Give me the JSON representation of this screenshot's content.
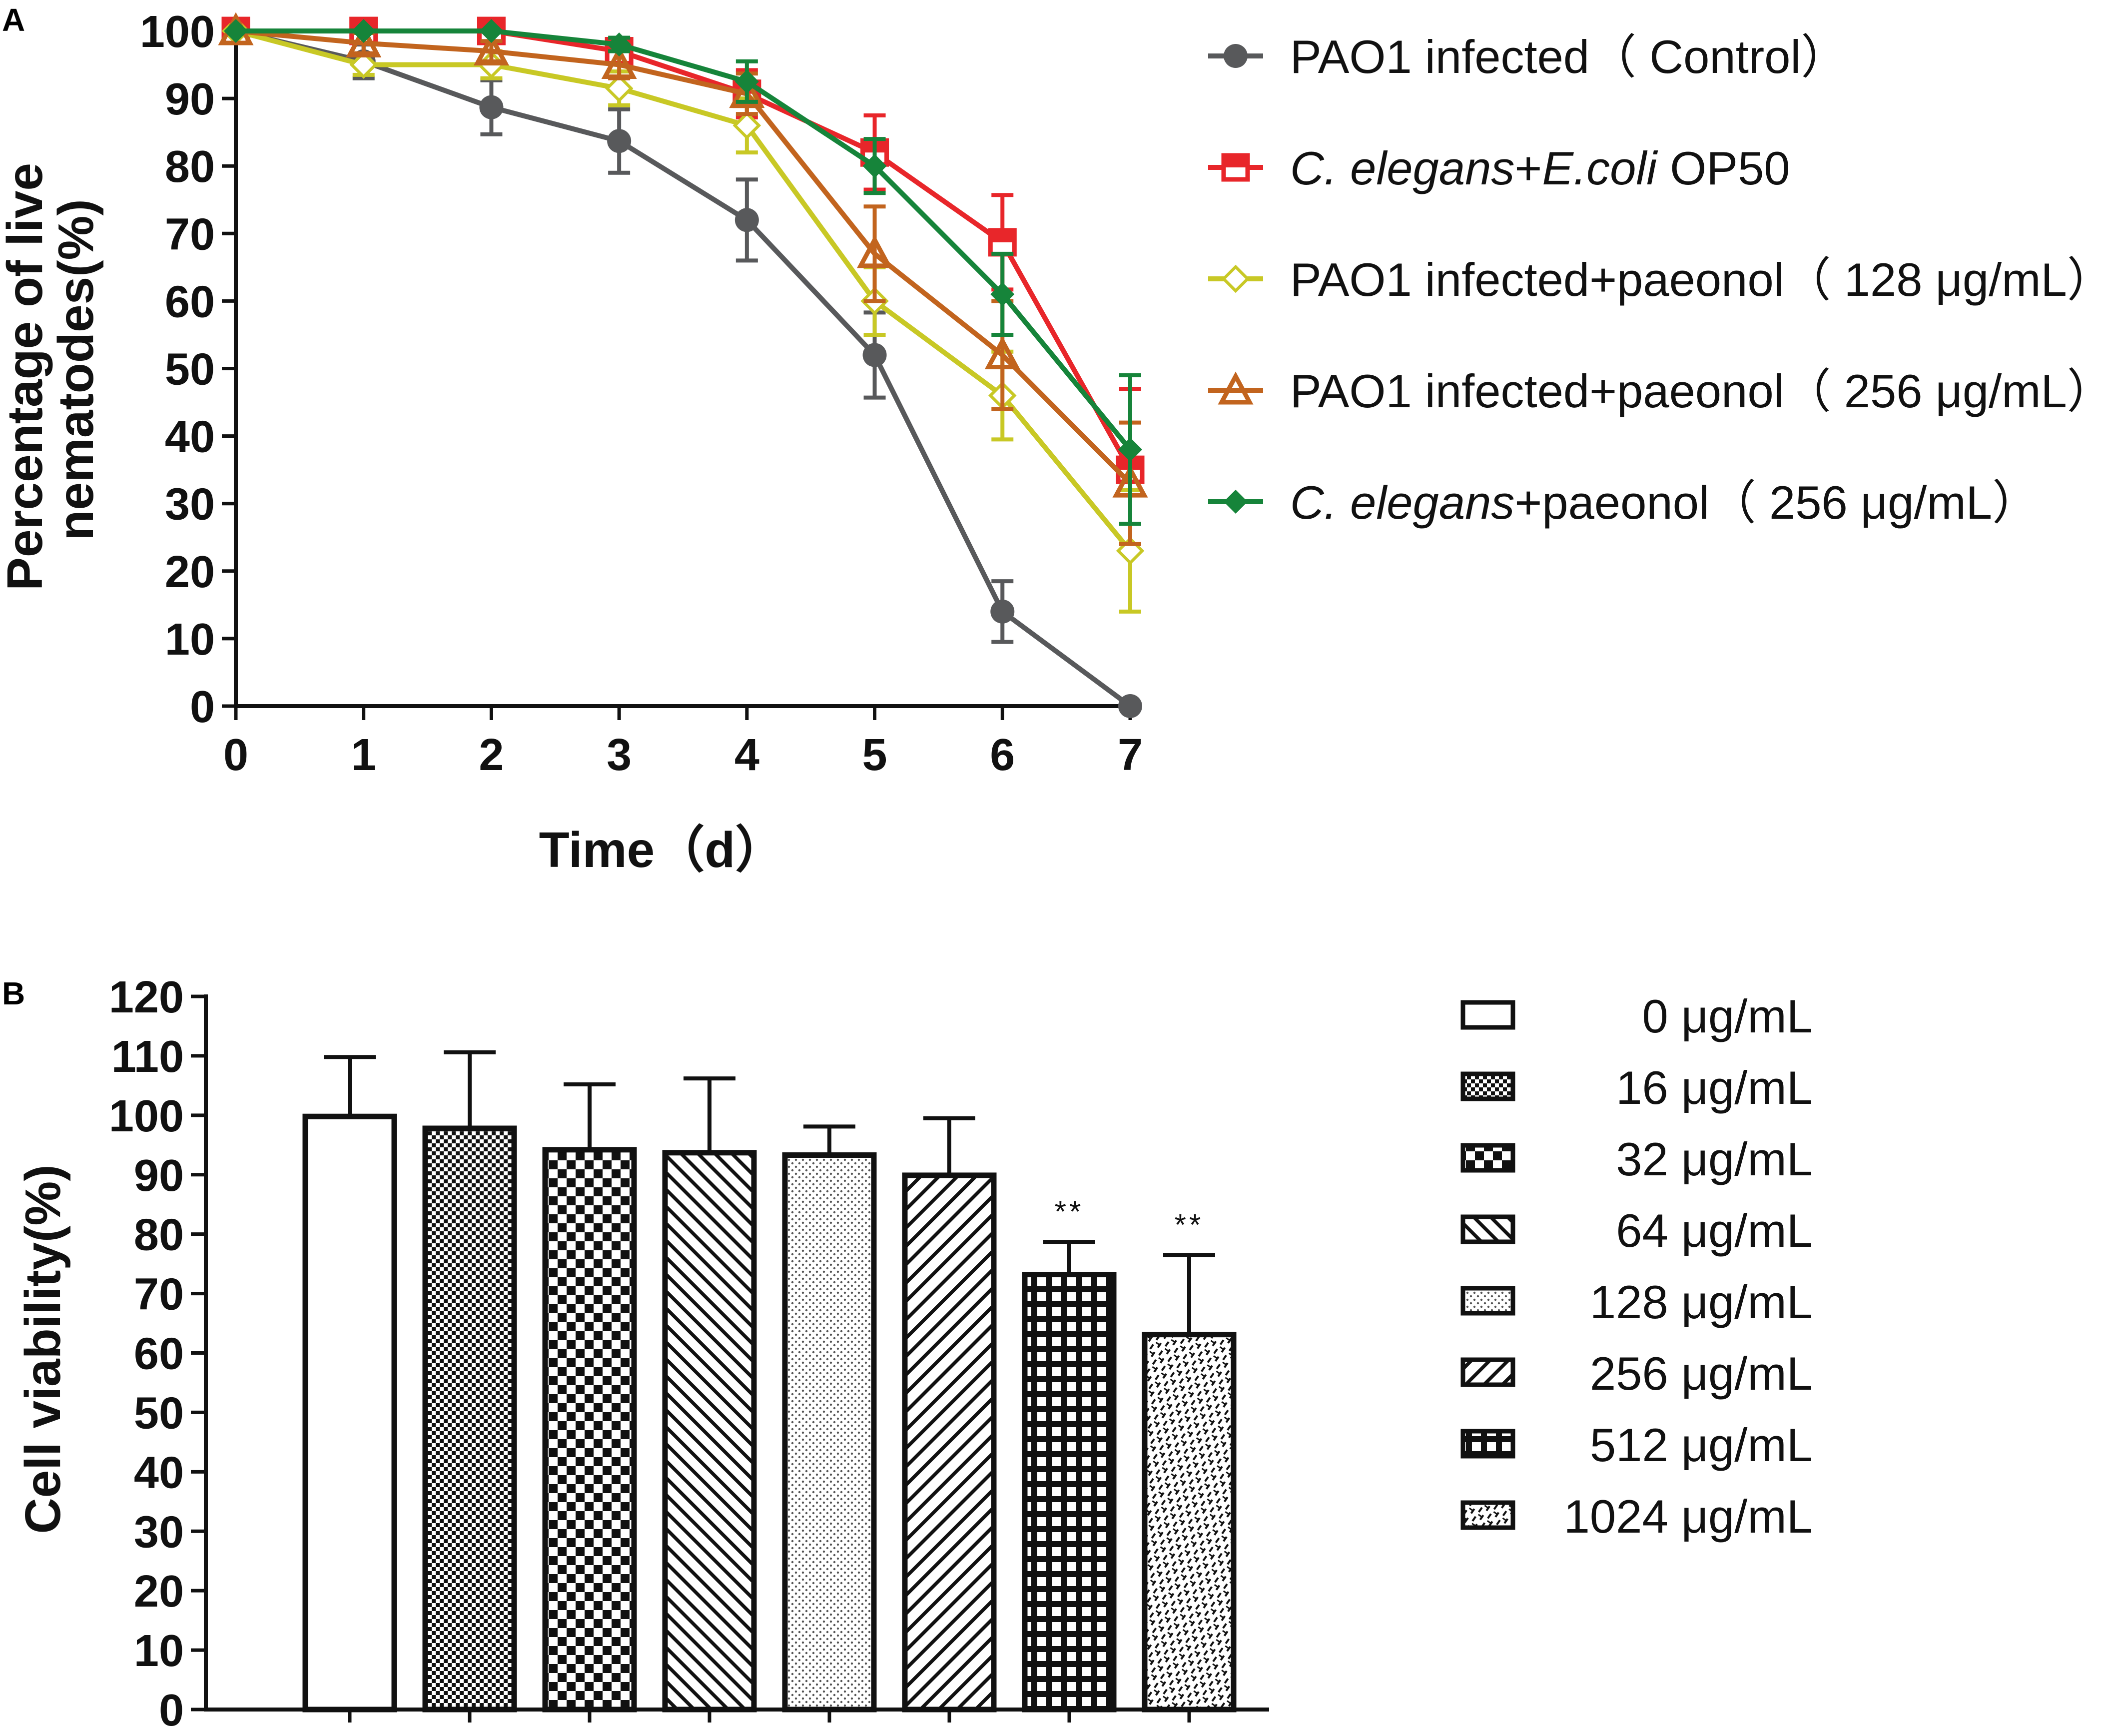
{
  "figure": {
    "panel_a_label": "A",
    "panel_b_label": "B"
  },
  "chart_data": [
    {
      "type": "line",
      "panel": "A",
      "title": "",
      "xlabel": "Time（d）",
      "ylabel": "Percentage of live nematodes(%)",
      "ylabel_lines": [
        "Percentage of live",
        "nematodes(%)"
      ],
      "xlim": [
        0,
        7
      ],
      "ylim": [
        0,
        100
      ],
      "xticks": [
        "0",
        "1",
        "2",
        "3",
        "4",
        "5",
        "6",
        "7"
      ],
      "yticks": [
        "0",
        "10",
        "20",
        "30",
        "40",
        "50",
        "60",
        "70",
        "80",
        "90",
        "100"
      ],
      "grid": false,
      "legend_position": "right",
      "x": [
        0,
        1,
        2,
        3,
        4,
        5,
        6,
        7
      ],
      "series": [
        {
          "name": "PAO1 infected（Control）",
          "legend_parts": [
            {
              "text": "PAO1 infected（ Control）",
              "italic": false
            }
          ],
          "color": "#58595b",
          "marker": "circle",
          "values": [
            100,
            95.5,
            88.7,
            83.7,
            72,
            52,
            14,
            0
          ],
          "errors": [
            0,
            2.5,
            4,
            4.7,
            6,
            6.3,
            4.5,
            0
          ]
        },
        {
          "name": "C. elegans+E.coli OP50",
          "legend_parts": [
            {
              "text": "C. elegans",
              "italic": true
            },
            {
              "text": "+",
              "italic": false
            },
            {
              "text": "E.coli",
              "italic": true
            },
            {
              "text": " OP50",
              "italic": false
            }
          ],
          "color": "#e8262a",
          "marker": "square",
          "values": [
            100,
            100,
            100,
            97,
            90.7,
            82,
            68.7,
            35
          ],
          "errors": [
            0,
            0,
            0,
            1.5,
            3.5,
            5.5,
            7,
            12
          ]
        },
        {
          "name": "PAO1 infected+paeonol（128 μg/mL）",
          "legend_parts": [
            {
              "text": "PAO1 infected+paeonol（ 128 μg/mL）",
              "italic": false
            }
          ],
          "color": "#c8c825",
          "marker": "diamond-open",
          "values": [
            100,
            95,
            95,
            91.5,
            86,
            60,
            46,
            23
          ],
          "errors": [
            0,
            1.5,
            2,
            2.5,
            4,
            5,
            6.5,
            9
          ]
        },
        {
          "name": "PAO1 infected+paeonol（256 μg/mL）",
          "legend_parts": [
            {
              "text": "PAO1 infected+paeonol（ 256 μg/mL）",
              "italic": false
            }
          ],
          "color": "#c2641e",
          "marker": "triangle",
          "values": [
            100,
            98.2,
            97,
            95,
            90.7,
            67,
            52,
            33
          ],
          "errors": [
            0,
            1.5,
            1.5,
            2,
            3,
            7,
            8,
            9
          ]
        },
        {
          "name": "C. elegans+paeonol（256 μg/mL）",
          "legend_parts": [
            {
              "text": "C. elegans",
              "italic": true
            },
            {
              "text": "+paeonol（ 256 μg/mL）",
              "italic": false
            }
          ],
          "color": "#16843a",
          "marker": "diamond",
          "values": [
            100,
            100,
            100,
            98,
            92.5,
            80,
            61,
            38
          ],
          "errors": [
            0,
            0,
            0,
            1,
            3,
            4,
            6,
            11
          ]
        }
      ]
    },
    {
      "type": "bar",
      "panel": "B",
      "title": "",
      "xlabel": "",
      "ylabel": "Cell viability(%)",
      "ylim": [
        0,
        120
      ],
      "yticks": [
        "0",
        "10",
        "20",
        "30",
        "40",
        "50",
        "60",
        "70",
        "80",
        "90",
        "100",
        "110",
        "120"
      ],
      "grid": false,
      "legend_position": "right",
      "categories": [
        "0 μg/mL",
        "16 μg/mL",
        "32 μg/mL",
        "64 μg/mL",
        "128 μg/mL",
        "256 μg/mL",
        "512 μg/mL",
        "1024 μg/mL"
      ],
      "values": [
        99.8,
        97.8,
        94.2,
        93.7,
        93.3,
        89.9,
        73.2,
        63.1
      ],
      "errors": [
        10,
        12.8,
        11,
        12.5,
        4.8,
        9.6,
        5.5,
        13.4
      ],
      "patterns": [
        "none",
        "fine-check",
        "check",
        "diag-up",
        "dots",
        "diag-down",
        "grid",
        "weave"
      ],
      "annotations": [
        "",
        "",
        "",
        "",
        "",
        "",
        "**",
        "**"
      ]
    }
  ]
}
